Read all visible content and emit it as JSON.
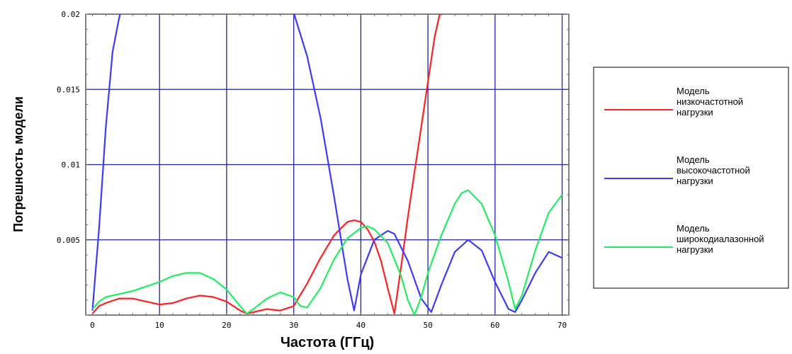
{
  "chart_data": {
    "type": "line",
    "xlabel": "Частота (ГГц)",
    "ylabel": "Погрешность модели",
    "xlim": [
      -1,
      71
    ],
    "ylim": [
      0,
      0.02
    ],
    "x_ticks": [
      0,
      10,
      20,
      30,
      40,
      50,
      60,
      70
    ],
    "y_ticks": [
      0.005,
      0.01,
      0.015,
      0.02
    ],
    "y_tick_labels": [
      "0.005",
      "0.01",
      "0.015",
      "0.02"
    ],
    "grid": true,
    "legend_position": "right",
    "series": [
      {
        "name": "Модель низкочастотной нагрузки",
        "legend_lines": [
          "Модель",
          "низкочастотной",
          "нагрузки"
        ],
        "color": "#ff2020",
        "x": [
          0,
          1,
          2,
          4,
          6,
          8,
          10,
          12,
          14,
          16,
          18,
          20,
          22,
          23,
          24,
          26,
          28,
          30,
          32,
          34,
          36,
          38,
          39,
          40,
          41,
          42,
          43,
          44,
          45,
          46,
          47,
          48,
          49,
          50,
          51,
          52
        ],
        "y": [
          0.0001,
          0.0006,
          0.0008,
          0.0011,
          0.0011,
          0.0009,
          0.0007,
          0.0008,
          0.0011,
          0.0013,
          0.0012,
          0.0009,
          0.0003,
          0.0001,
          0.0002,
          0.0004,
          0.0003,
          0.0006,
          0.0021,
          0.0038,
          0.0053,
          0.0062,
          0.0063,
          0.0062,
          0.0057,
          0.0049,
          0.0036,
          0.0018,
          0.0001,
          0.0032,
          0.0065,
          0.0095,
          0.0125,
          0.0155,
          0.0185,
          0.0205
        ]
      },
      {
        "name": "Модель высокочастотной нагрузки",
        "legend_lines": [
          "Модель",
          "высокочастотной",
          "нагрузки"
        ],
        "color": "#3b3bff",
        "x": [
          0,
          1,
          2,
          3,
          4,
          4.5,
          29.5,
          30,
          32,
          34,
          36,
          38,
          39,
          40,
          42,
          44,
          45,
          47,
          49,
          50.5,
          52,
          54,
          56,
          58,
          60,
          62,
          63,
          64,
          66,
          68,
          70
        ],
        "y": [
          0.0003,
          0.0058,
          0.0125,
          0.0175,
          0.0198,
          0.0205,
          0.0205,
          0.0201,
          0.0172,
          0.0131,
          0.0079,
          0.0024,
          0.0003,
          0.0027,
          0.005,
          0.0056,
          0.0054,
          0.0036,
          0.0011,
          0.0002,
          0.002,
          0.0042,
          0.005,
          0.0043,
          0.0022,
          0.0004,
          0.0002,
          0.001,
          0.0028,
          0.0042,
          0.0038
        ]
      },
      {
        "name": "Модель широкодиалазонной нагрузки",
        "legend_lines": [
          "Модель",
          "широкодиалазонной",
          "нагрузки"
        ],
        "color": "#20ee60",
        "x": [
          0,
          1,
          2,
          4,
          6,
          8,
          10,
          12,
          14,
          16,
          18,
          20,
          22,
          23,
          24,
          26,
          28,
          30,
          31,
          32,
          34,
          36,
          38,
          40,
          41,
          42,
          44,
          46,
          47,
          48,
          49,
          50,
          52,
          54,
          55,
          56,
          58,
          60,
          62,
          63,
          64,
          66,
          68,
          70
        ],
        "y": [
          0.0004,
          0.0009,
          0.0012,
          0.0014,
          0.0016,
          0.0019,
          0.0022,
          0.0026,
          0.0028,
          0.0028,
          0.0024,
          0.0017,
          0.0006,
          0.0001,
          0.0004,
          0.0011,
          0.0015,
          0.0012,
          0.0006,
          0.0005,
          0.0018,
          0.0037,
          0.0051,
          0.0058,
          0.0059,
          0.0057,
          0.0048,
          0.0026,
          0.001,
          0.0,
          0.0012,
          0.0028,
          0.0053,
          0.0074,
          0.0081,
          0.0083,
          0.0074,
          0.0053,
          0.0022,
          0.0004,
          0.0013,
          0.0043,
          0.0068,
          0.008
        ]
      }
    ]
  }
}
